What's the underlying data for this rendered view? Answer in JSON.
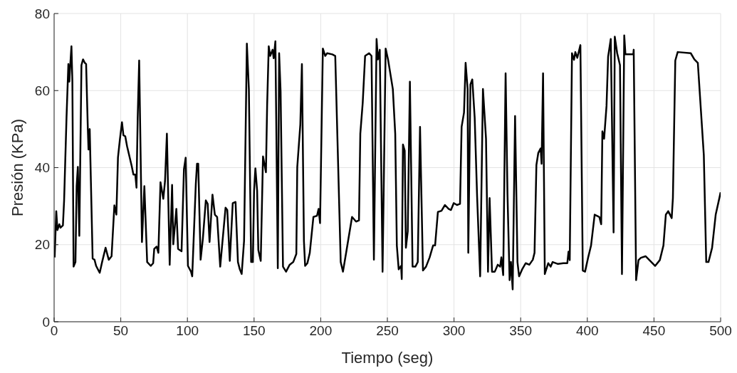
{
  "chart_data": {
    "type": "line",
    "xlabel": "Tiempo (seg)",
    "ylabel": "Presión (KPa)",
    "xlim": [
      0,
      500
    ],
    "ylim": [
      0,
      80
    ],
    "xticks": [
      0,
      50,
      100,
      150,
      200,
      250,
      300,
      350,
      400,
      450,
      500
    ],
    "yticks": [
      0,
      20,
      40,
      60,
      80
    ],
    "grid": true,
    "marker": "none",
    "line_style": "solid",
    "x": [
      0.4,
      1.6,
      2.5,
      3.9,
      4.8,
      6.6,
      7.5,
      9.3,
      10.7,
      11.4,
      12.1,
      13,
      13.7,
      14.6,
      16,
      16.9,
      17.8,
      18.9,
      20.5,
      21.7,
      23,
      24,
      25.3,
      25.8,
      26.7,
      28.9,
      30.3,
      31.5,
      34.2,
      36,
      38.6,
      41,
      43.1,
      45.2,
      46.7,
      47.9,
      49.3,
      50.9,
      52,
      53.4,
      54.7,
      58.2,
      59.5,
      60.9,
      61.8,
      62.7,
      63.8,
      65.9,
      67.7,
      69.8,
      72.5,
      74.3,
      75.1,
      76.9,
      78.2,
      79.8,
      81.9,
      83.2,
      84.6,
      86.7,
      88.5,
      89.4,
      91.7,
      93,
      95.6,
      97.4,
      98.7,
      100.4,
      102.7,
      103.6,
      106.3,
      107.2,
      108.1,
      109.9,
      111.6,
      113.8,
      115.2,
      116.6,
      118.8,
      120.6,
      122.3,
      124.6,
      128.6,
      129.9,
      131.8,
      134,
      136.1,
      137.9,
      139.3,
      140.7,
      142.5,
      144.6,
      146.1,
      147.8,
      149.1,
      150,
      151,
      152.3,
      153.2,
      155,
      156.7,
      158.9,
      159.8,
      161,
      162.1,
      163.9,
      164.7,
      166,
      167.8,
      168.8,
      169.9,
      171.7,
      174,
      176.7,
      179.4,
      181.7,
      182.4,
      184.7,
      185.9,
      187.4,
      188.3,
      190,
      191.8,
      194.5,
      197.2,
      198.4,
      199.5,
      201.6,
      203.4,
      204.8,
      208.7,
      210.9,
      215,
      216.7,
      219.4,
      223.5,
      226.5,
      228.7,
      229.7,
      231.5,
      233.3,
      236.3,
      238.1,
      239.9,
      241.9,
      242.9,
      244.3,
      246.4,
      248.7,
      250.5,
      254.1,
      255.9,
      257.1,
      258.5,
      260.3,
      260.8,
      261.7,
      263,
      263.9,
      265.3,
      266.9,
      268.9,
      271,
      272.8,
      274.5,
      276.7,
      279,
      281.7,
      284.3,
      285.8,
      287.9,
      290.6,
      293.2,
      295.9,
      297.7,
      299.8,
      302.2,
      304.5,
      305.7,
      307.5,
      308.7,
      310.2,
      310.7,
      312.3,
      313.7,
      315.5,
      317.3,
      319.6,
      321.7,
      324,
      325.5,
      326.7,
      328.5,
      330.6,
      332.8,
      334.6,
      335.5,
      336.9,
      338.7,
      340.1,
      341.7,
      342.7,
      344,
      345.8,
      347.6,
      348.8,
      351.1,
      353.8,
      356.5,
      359.1,
      360.4,
      361.8,
      363.2,
      365,
      365.7,
      366.8,
      368.1,
      370.7,
      372.5,
      374,
      378,
      382,
      385,
      385.9,
      386.8,
      388.5,
      390,
      391,
      392.5,
      394.8,
      396.6,
      398.3,
      400.5,
      402.8,
      405.5,
      409,
      410.4,
      411.3,
      412.6,
      414.4,
      415.6,
      417.6,
      419.7,
      420.6,
      422.4,
      424.5,
      426,
      427.7,
      428.6,
      434.5,
      434.8,
      436.6,
      438.4,
      440.2,
      443.7,
      450.9,
      454.4,
      457.1,
      458.9,
      460.7,
      463.3,
      464.2,
      466,
      467.8,
      477.6,
      480.3,
      482.9,
      487.4,
      489.2,
      490.9,
      493.6,
      496.3,
      498.1,
      500
    ],
    "series": [
      {
        "color": "#000000",
        "values": [
          16.7,
          28.7,
          23.8,
          25.3,
          24.4,
          25,
          31.5,
          53,
          66.9,
          62.3,
          66.6,
          71.5,
          62.3,
          14.3,
          15.5,
          35.2,
          40.2,
          22.3,
          66.6,
          68.1,
          67.2,
          66.9,
          50,
          44.7,
          50,
          16.4,
          16.1,
          14.5,
          12.7,
          15.5,
          19.2,
          16.1,
          17,
          30.2,
          27.8,
          42.6,
          47.2,
          51.8,
          48.4,
          48.1,
          45.6,
          40.4,
          38.2,
          38.2,
          34.8,
          53,
          67.8,
          20.7,
          35.2,
          15.5,
          14.5,
          15.2,
          18.9,
          19.5,
          17.9,
          36.2,
          31.9,
          36.5,
          48.8,
          14.8,
          35.5,
          20.1,
          29.3,
          18.9,
          18.3,
          39.6,
          42.6,
          14.5,
          13,
          11.8,
          35.8,
          41,
          41,
          16.1,
          21.6,
          31.5,
          30.6,
          20.7,
          33,
          27.8,
          27.2,
          14.3,
          29.6,
          29,
          15.8,
          30.8,
          31.1,
          15.5,
          13.6,
          12.4,
          21,
          72.2,
          60.4,
          15.5,
          15.5,
          34,
          39.8,
          34,
          18.6,
          15.8,
          42.9,
          38.8,
          56.1,
          71.5,
          69,
          70.6,
          68.4,
          72.8,
          13.9,
          69.7,
          59.8,
          14.3,
          13,
          14.8,
          15.5,
          17.6,
          40.1,
          51.2,
          66.9,
          21,
          14.5,
          15.2,
          17.9,
          27.2,
          27.5,
          29.3,
          25.6,
          70.9,
          69,
          69.7,
          69.4,
          69,
          15.5,
          13,
          18.6,
          27.2,
          26,
          26.3,
          48.8,
          56.8,
          69,
          69.7,
          69,
          16.1,
          73.4,
          68.1,
          70.6,
          13,
          70.9,
          68.1,
          60.4,
          48.8,
          19.8,
          13.6,
          14.5,
          11.1,
          46,
          44.4,
          19.2,
          23.5,
          62.3,
          14.3,
          14.3,
          15.5,
          50.6,
          13.3,
          14.3,
          16.7,
          19.8,
          19.8,
          28.5,
          28.8,
          30.3,
          29.3,
          29,
          30.8,
          30.3,
          30.6,
          50.6,
          54.3,
          67.2,
          60.4,
          17.9,
          61.6,
          62.9,
          53,
          32.7,
          11.8,
          60.4,
          47.5,
          13,
          32.1,
          13,
          13,
          14.8,
          14.3,
          16.7,
          12.1,
          64.5,
          33.3,
          10.8,
          15.5,
          8.4,
          53.4,
          15.5,
          11.8,
          13.6,
          15.2,
          14.8,
          16.1,
          17.9,
          40.7,
          43.8,
          45,
          41,
          64.5,
          12.4,
          15.2,
          14.3,
          15.5,
          15,
          15.2,
          15.2,
          18.2,
          16,
          69.7,
          68,
          70,
          68.5,
          71.8,
          13.3,
          13,
          16.5,
          19.8,
          27.8,
          27.2,
          25.3,
          49.4,
          47.5,
          56,
          68.8,
          73.4,
          23.2,
          74,
          69.7,
          66.6,
          12.4,
          74.3,
          69.4,
          69.4,
          70.6,
          10.8,
          16,
          16.6,
          17,
          14.5,
          16,
          19.8,
          27.8,
          28.7,
          26.9,
          32.1,
          67.8,
          70,
          69.7,
          68.1,
          67.2,
          43.2,
          15.5,
          15.5,
          19.2,
          27.8,
          30.6,
          33.6
        ]
      }
    ]
  }
}
